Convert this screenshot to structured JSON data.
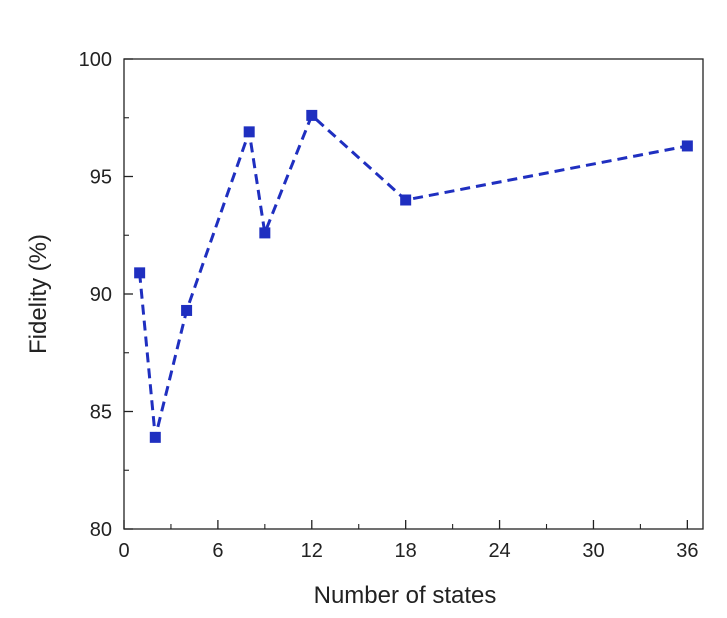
{
  "chart_data": {
    "type": "line",
    "title": "",
    "xlabel": "Number of states",
    "ylabel": "Fidelity (%)",
    "xlim": [
      0,
      37
    ],
    "ylim": [
      80,
      100
    ],
    "xticks": [
      0,
      6,
      12,
      18,
      24,
      30,
      36
    ],
    "yticks": [
      80,
      85,
      90,
      95,
      100
    ],
    "x_minor_ticks": [
      3,
      9,
      15,
      21,
      27,
      33
    ],
    "y_minor_ticks": [
      82.5,
      87.5,
      92.5,
      97.5
    ],
    "grid": false,
    "legend": "none",
    "line_style": "dashed",
    "marker": "square",
    "color": "#1f2fc0",
    "series": [
      {
        "x": [
          1,
          2,
          4,
          8,
          9,
          12,
          18,
          36
        ],
        "y": [
          90.9,
          83.9,
          89.3,
          96.9,
          92.6,
          97.6,
          94.0,
          96.3
        ]
      }
    ]
  }
}
